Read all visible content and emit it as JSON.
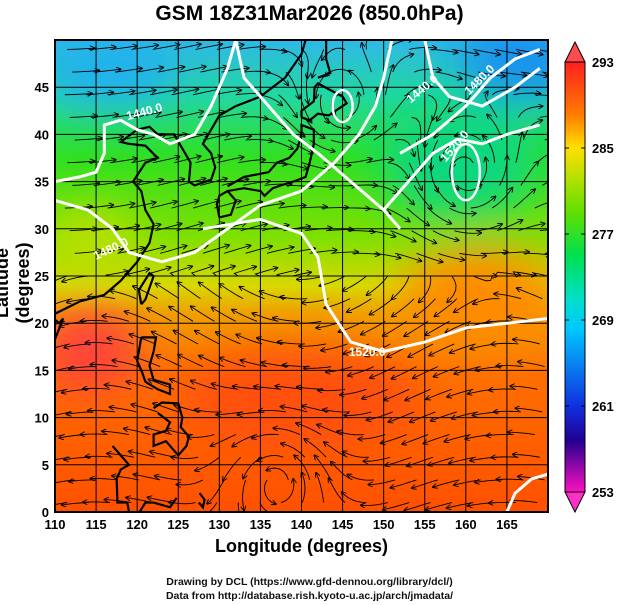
{
  "title": "GSM 18Z31Mar2026 (850.0hPa)",
  "x_axis": {
    "label": "Longitude (degrees)",
    "range": [
      110,
      170
    ],
    "ticks": [
      "110",
      "115",
      "120",
      "125",
      "130",
      "135",
      "140",
      "145",
      "150",
      "155",
      "160",
      "165"
    ]
  },
  "y_axis": {
    "label": "Latitude  (degrees)",
    "range": [
      0,
      50
    ],
    "ticks": [
      "0",
      "5",
      "10",
      "15",
      "20",
      "25",
      "30",
      "35",
      "40",
      "45"
    ]
  },
  "colorbar": {
    "ticks": [
      "293",
      "285",
      "277",
      "269",
      "261",
      "253"
    ],
    "range": [
      253,
      293
    ]
  },
  "contour_labels": [
    "1440.0",
    "1480.0",
    "1520.0",
    "1440.0",
    "1480.0",
    "1520.0"
  ],
  "credits": {
    "line1": "Drawing by DCL (https://www.gfd-dennou.org/library/dcl/)",
    "line2": "Data from http://database.rish.kyoto-u.ac.jp/arch/jmadata/"
  }
}
